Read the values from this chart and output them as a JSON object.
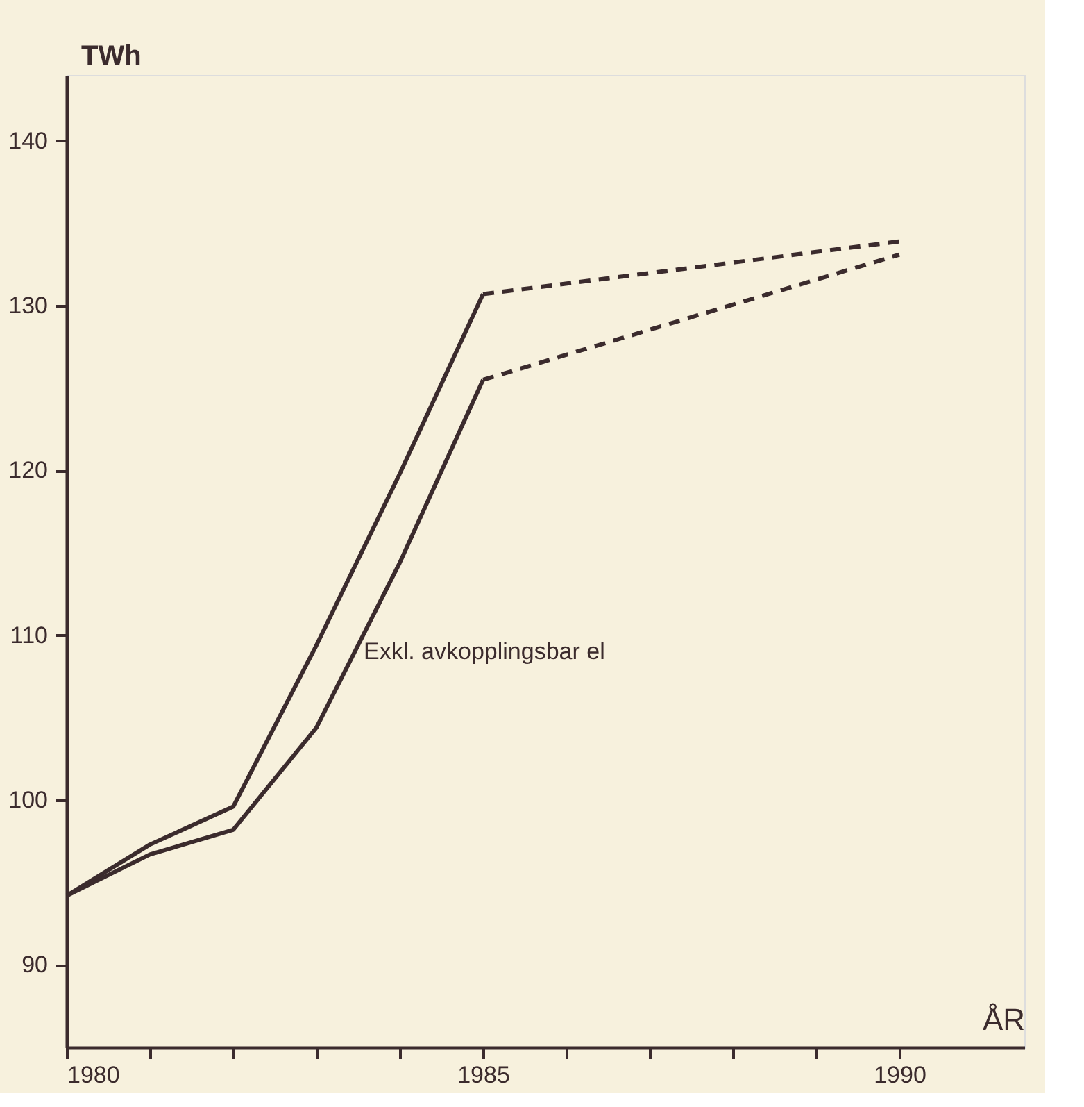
{
  "chart_data": {
    "type": "line",
    "xlabel": "ÅR",
    "ylabel": "TWh",
    "xlim": [
      1980,
      1991.5
    ],
    "ylim": [
      85,
      144
    ],
    "xticks": [
      1980,
      {
        "value": 1981,
        "label": null
      },
      {
        "value": 1982,
        "label": null
      },
      {
        "value": 1983,
        "label": null
      },
      {
        "value": 1984,
        "label": null
      },
      1985,
      {
        "value": 1986,
        "label": null
      },
      {
        "value": 1987,
        "label": null
      },
      {
        "value": 1988,
        "label": null
      },
      {
        "value": 1989,
        "label": null
      },
      1990
    ],
    "yticks": [
      90,
      100,
      110,
      120,
      130,
      140
    ],
    "grid": false,
    "marker": "none",
    "series": [
      {
        "color": "#3b2b2d",
        "line_style": "solid",
        "x": [
          1980,
          1981,
          1982,
          1983,
          1984,
          1985
        ],
        "values": [
          94.2,
          97.3,
          99.6,
          109.4,
          119.8,
          130.7
        ]
      },
      {
        "color": "#3b2b2d",
        "line_style": "solid",
        "x": [
          1980,
          1981,
          1982,
          1983,
          1984,
          1985
        ],
        "values": [
          94.2,
          96.7,
          98.2,
          104.4,
          114.4,
          125.5
        ]
      },
      {
        "color": "#3b2b2d",
        "line_style": "dashed",
        "x": [
          1985,
          1990
        ],
        "values": [
          130.7,
          133.9
        ]
      },
      {
        "color": "#3b2b2d",
        "line_style": "dashed",
        "x": [
          1985,
          1990
        ],
        "values": [
          125.5,
          133.1
        ]
      }
    ],
    "annotations": [
      {
        "text": "Exkl. avkopplingsbar el",
        "x": 1983.4,
        "y": 109.0
      }
    ]
  }
}
